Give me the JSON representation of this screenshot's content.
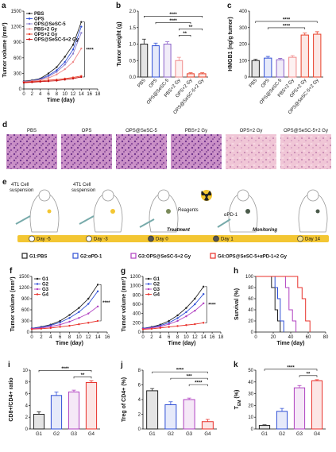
{
  "chart_data": [
    {
      "panel": "a",
      "type": "line",
      "xlabel": "Time (day)",
      "ylabel": "Tumor volume (mm³)",
      "x": [
        0,
        2,
        4,
        6,
        8,
        10,
        12,
        14
      ],
      "xlim": [
        0,
        18
      ],
      "xticks": [
        0,
        2,
        4,
        6,
        8,
        10,
        12,
        14,
        16,
        18
      ],
      "ylim": [
        0,
        1500
      ],
      "yticks": [
        0,
        300,
        600,
        900,
        1200,
        1500
      ],
      "legend": "upper left",
      "annotation": "****",
      "series": [
        {
          "name": "PBS",
          "color": "#222222",
          "values": [
            150,
            170,
            200,
            300,
            420,
            620,
            850,
            1290
          ]
        },
        {
          "name": "OPS",
          "color": "#2f4fd6",
          "values": [
            140,
            160,
            190,
            260,
            360,
            520,
            760,
            1200
          ]
        },
        {
          "name": "OPS@SeSC-5",
          "color": "#8a7fd0",
          "values": [
            140,
            160,
            180,
            240,
            330,
            470,
            680,
            1080
          ]
        },
        {
          "name": "PBS+2 Gy",
          "color": "#f08a8a",
          "values": [
            130,
            150,
            170,
            210,
            280,
            380,
            520,
            780
          ]
        },
        {
          "name": "OPS+2 Gy",
          "color": "#e8402a",
          "values": [
            130,
            140,
            150,
            170,
            180,
            200,
            220,
            250
          ]
        },
        {
          "name": "OPS@SeSC-5+2 Gy",
          "color": "#c81010",
          "values": [
            120,
            130,
            140,
            150,
            160,
            180,
            200,
            230
          ]
        }
      ]
    },
    {
      "panel": "b",
      "type": "bar",
      "ylabel": "Tumor weight (g)",
      "categories": [
        "PBS",
        "OPS",
        "OPS@SeSC-5",
        "PBS+2 Gy",
        "OPS+2 Gy",
        "OPS@SeSC-5+2 Gy"
      ],
      "values": [
        1.0,
        0.95,
        1.0,
        0.5,
        0.1,
        0.1
      ],
      "errors": [
        0.15,
        0.08,
        0.07,
        0.1,
        0.03,
        0.03
      ],
      "colors": [
        "#222222",
        "#2f4fd6",
        "#8a5fc8",
        "#f08a8a",
        "#e8402a",
        "#e8402a"
      ],
      "ylim": [
        0,
        2.0
      ],
      "yticks": [
        {
          "value": 0,
          "label": "0.0"
        },
        0.5,
        {
          "value": 1,
          "label": "1.0"
        },
        1.5,
        {
          "value": 2,
          "label": "2.0"
        }
      ],
      "significance": [
        {
          "between": [
            "PBS+2 Gy",
            "OPS+2 Gy"
          ],
          "label": "**"
        },
        {
          "between": [
            "PBS+2 Gy",
            "OPS@SeSC-5+2 Gy"
          ],
          "label": "**"
        },
        {
          "between": [
            "OPS",
            "OPS+2 Gy"
          ],
          "label": "****"
        },
        {
          "between": [
            "PBS",
            "OPS@SeSC-5+2 Gy"
          ],
          "label": "****"
        }
      ]
    },
    {
      "panel": "c",
      "type": "bar",
      "ylabel": "HMGB1 (ng/g tumor)",
      "categories": [
        "PBS",
        "OPS",
        "OPS@SeSC-5",
        "PBS+2 Gy",
        "OPS+2 Gy",
        "OPS@SeSC-5+2 Gy"
      ],
      "values": [
        100,
        115,
        105,
        120,
        255,
        260
      ],
      "errors": [
        8,
        10,
        8,
        10,
        12,
        15
      ],
      "colors": [
        "#222222",
        "#2f4fd6",
        "#8a5fc8",
        "#f08a8a",
        "#e8402a",
        "#e8402a"
      ],
      "ylim": [
        0,
        400
      ],
      "yticks": [
        0,
        100,
        200,
        300,
        400
      ],
      "significance": [
        {
          "between": [
            "OPS",
            "OPS+2 Gy"
          ],
          "label": "****"
        },
        {
          "between": [
            "PBS",
            "OPS@SeSC-5+2 Gy"
          ],
          "label": "****"
        }
      ]
    },
    {
      "panel": "f",
      "type": "line",
      "xlabel": "Time (day)",
      "ylabel": "Tumor volume (mm³)",
      "x": [
        0,
        2,
        4,
        6,
        8,
        10,
        12,
        14
      ],
      "xlim": [
        0,
        16
      ],
      "xticks": [
        0,
        2,
        4,
        6,
        8,
        10,
        12,
        14,
        16
      ],
      "ylim": [
        0,
        1500
      ],
      "yticks": [
        0,
        300,
        600,
        900,
        1200,
        1500
      ],
      "legend": "upper left",
      "annotation": "****",
      "series": [
        {
          "name": "G1",
          "color": "#222222",
          "values": [
            100,
            140,
            200,
            300,
            460,
            650,
            900,
            1280
          ]
        },
        {
          "name": "G2",
          "color": "#2f4fd6",
          "values": [
            100,
            130,
            180,
            260,
            380,
            540,
            760,
            1100
          ]
        },
        {
          "name": "G3",
          "color": "#b040c0",
          "values": [
            90,
            110,
            150,
            200,
            280,
            380,
            500,
            690
          ]
        },
        {
          "name": "G4",
          "color": "#e8302a",
          "values": [
            80,
            90,
            110,
            140,
            170,
            210,
            250,
            300
          ]
        }
      ]
    },
    {
      "panel": "g",
      "type": "line",
      "xlabel": "Time (day)",
      "ylabel": "Tumor volume (mm³)",
      "x": [
        0,
        2,
        4,
        6,
        8,
        10,
        12,
        14
      ],
      "xlim": [
        0,
        18
      ],
      "xticks": [
        0,
        2,
        4,
        6,
        8,
        10,
        12,
        14,
        16,
        18
      ],
      "ylim": [
        0,
        1200
      ],
      "yticks": [
        0,
        200,
        400,
        600,
        800,
        1000,
        1200
      ],
      "legend": "upper left",
      "annotation": "****",
      "series": [
        {
          "name": "G1",
          "color": "#222222",
          "values": [
            80,
            110,
            160,
            240,
            360,
            520,
            720,
            980
          ]
        },
        {
          "name": "G2",
          "color": "#2f4fd6",
          "values": [
            80,
            100,
            140,
            200,
            300,
            430,
            600,
            820
          ]
        },
        {
          "name": "G3",
          "color": "#b040c0",
          "values": [
            70,
            90,
            120,
            170,
            240,
            340,
            460,
            620
          ]
        },
        {
          "name": "G4",
          "color": "#e8302a",
          "values": [
            60,
            70,
            90,
            110,
            130,
            150,
            170,
            200
          ]
        }
      ]
    },
    {
      "panel": "h",
      "type": "survival",
      "xlabel": "Time (day)",
      "ylabel": "Survival (%)",
      "xlim": [
        0,
        80
      ],
      "xticks": [
        0,
        20,
        40,
        60,
        80
      ],
      "ylim": [
        0,
        100
      ],
      "yticks": [
        0,
        20,
        40,
        60,
        80,
        100
      ],
      "series": [
        {
          "color": "#222222",
          "x": [
            0,
            18,
            22,
            25,
            28
          ],
          "values": [
            100,
            80,
            40,
            20,
            0
          ]
        },
        {
          "color": "#2f4fd6",
          "x": [
            0,
            22,
            25,
            28,
            32
          ],
          "values": [
            100,
            80,
            60,
            20,
            0
          ]
        },
        {
          "color": "#b040c0",
          "x": [
            0,
            34,
            38,
            42,
            46
          ],
          "values": [
            100,
            80,
            40,
            20,
            0
          ]
        },
        {
          "color": "#e8302a",
          "x": [
            0,
            48,
            53,
            57,
            62
          ],
          "values": [
            100,
            80,
            60,
            20,
            0
          ]
        }
      ]
    },
    {
      "panel": "i",
      "type": "bar",
      "ylabel": "CD8+/CD4+ ratio",
      "categories": [
        "G1",
        "G2",
        "G3",
        "G4"
      ],
      "values": [
        2.5,
        5.7,
        6.3,
        7.9
      ],
      "errors": [
        0.4,
        0.6,
        0.3,
        0.3
      ],
      "colors": [
        "#222222",
        "#2f4fd6",
        "#b040c0",
        "#e8302a"
      ],
      "ylim": [
        0,
        10
      ],
      "yticks": [
        0,
        2,
        4,
        6,
        8,
        10
      ],
      "significance": [
        {
          "between": [
            "G3",
            "G4"
          ],
          "label": "**"
        },
        {
          "between": [
            "G1",
            "G4"
          ],
          "label": "****"
        }
      ]
    },
    {
      "panel": "j",
      "type": "bar",
      "ylabel": "Treg of CD4+ (%)",
      "categories": [
        "G1",
        "G2",
        "G3",
        "G4"
      ],
      "values": [
        5.2,
        3.3,
        4.0,
        1.0
      ],
      "errors": [
        0.3,
        0.4,
        0.2,
        0.3
      ],
      "colors": [
        "#222222",
        "#2f4fd6",
        "#b040c0",
        "#e8302a"
      ],
      "ylim": [
        0,
        8
      ],
      "yticks": [
        0,
        2,
        4,
        6,
        8
      ],
      "significance": [
        {
          "between": [
            "G3",
            "G4"
          ],
          "label": "****"
        },
        {
          "between": [
            "G2",
            "G4"
          ],
          "label": "***"
        },
        {
          "between": [
            "G1",
            "G4"
          ],
          "label": "****"
        }
      ]
    },
    {
      "panel": "k",
      "type": "bar",
      "ylabel": "T",
      "ylabel_sub": "EM",
      "ylabel_tail": " (%)",
      "categories": [
        "G1",
        "G2",
        "G3",
        "G4"
      ],
      "values": [
        3,
        15,
        35,
        41
      ],
      "errors": [
        0.5,
        2.5,
        2,
        1
      ],
      "colors": [
        "#222222",
        "#2f4fd6",
        "#b040c0",
        "#e8302a"
      ],
      "ylim": [
        0,
        50
      ],
      "yticks": [
        0,
        10,
        20,
        30,
        40,
        50
      ],
      "significance": [
        {
          "between": [
            "G3",
            "G4"
          ],
          "label": "**"
        },
        {
          "between": [
            "G1",
            "G4"
          ],
          "label": "****"
        }
      ]
    }
  ],
  "histology": {
    "letter": "d",
    "labels": [
      "PBS",
      "OPS",
      "OPS@SeSC-5",
      "PBS+2 Gy",
      "OPS+2 Gy",
      "OPS@SeSC-5+2 Gy"
    ]
  },
  "schematic": {
    "letter": "e",
    "cell_suspension": [
      "4T1 Cell",
      "suspension"
    ],
    "reagents": "Reagents",
    "antibody": "αPD-1",
    "phases": [
      "Treatment",
      "Monitoring"
    ],
    "days": [
      "Day -5",
      "Day -3",
      "Day 0",
      "Day 1",
      "Day 14"
    ],
    "groups": [
      {
        "label": "G1:PBS",
        "color": "#222222"
      },
      {
        "label": "G2:αPD-1",
        "color": "#2f4fd6"
      },
      {
        "label": "G3:OPS@SeSC-5+2 Gy",
        "color": "#b040c0"
      },
      {
        "label": "G4:OPS@SeSC-5+αPD-1+2 Gy",
        "color": "#e8302a"
      }
    ]
  }
}
